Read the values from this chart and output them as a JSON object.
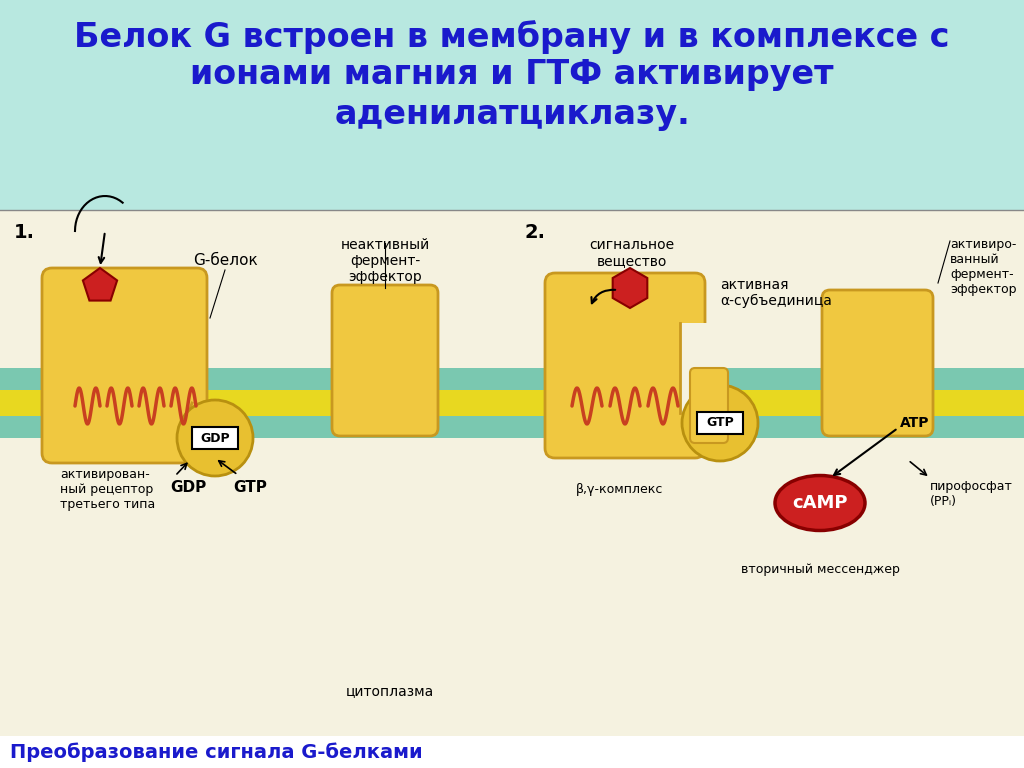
{
  "title_bg": "#b8e8e0",
  "diagram_bg": "#f0edd8",
  "membrane_cyan": "#7ac8b0",
  "membrane_yellow": "#e8d820",
  "receptor_fill": "#f0c840",
  "receptor_edge": "#c89820",
  "helix_color": "#c84020",
  "signal_red": "#cc2020",
  "gdp_fill": "#e8c030",
  "gdp_edge": "#b89010",
  "camp_fill": "#cc2020",
  "camp_edge": "#880000",
  "arrow_color": "#111111",
  "text_color": "#111111",
  "blue_text": "#1a1acc",
  "footer_bg": "#ffffff",
  "title_line1": "Белок G встроен в мембрану и в комплексе с",
  "title_line2": "ионами магния и ГТФ активирует",
  "title_line3": "аденилатциклазу.",
  "footer_text": "Преобразование сигнала G-белками"
}
